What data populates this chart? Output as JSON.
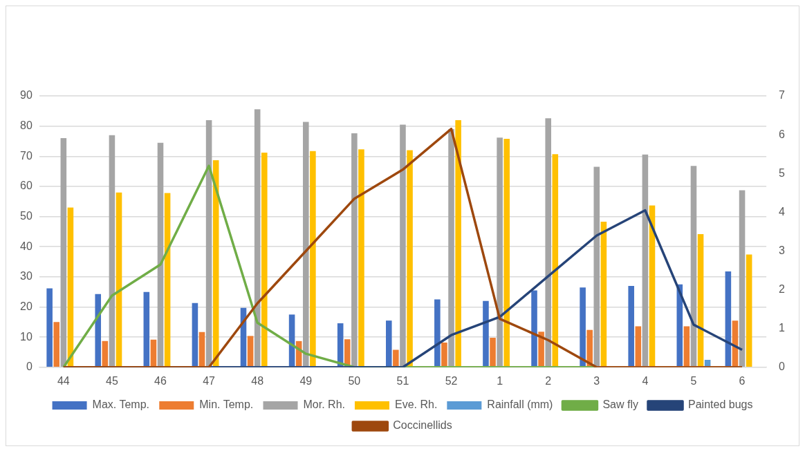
{
  "chart_data": {
    "type": "bar",
    "categories": [
      "44",
      "45",
      "46",
      "47",
      "48",
      "49",
      "50",
      "51",
      "52",
      "1",
      "2",
      "3",
      "4",
      "5",
      "6"
    ],
    "series": [
      {
        "name": "Max. Temp.",
        "color": "#4472c4",
        "values": [
          26.2,
          24.3,
          25,
          21.3,
          19.7,
          17.5,
          14.6,
          15.5,
          22.5,
          22,
          25.5,
          26.5,
          27,
          27.5,
          31.8
        ]
      },
      {
        "name": "Min. Temp.",
        "color": "#ed7d31",
        "values": [
          15,
          8.7,
          9.2,
          11.7,
          10.4,
          8.7,
          9.3,
          5.8,
          8.2,
          9.8,
          11.8,
          12.4,
          13.6,
          13.6,
          15.5
        ]
      },
      {
        "name": "Mor. Rh.",
        "color": "#a5a5a5",
        "values": [
          76,
          77,
          74.5,
          82,
          85.6,
          81.4,
          77.6,
          80.5,
          79,
          76.2,
          82.6,
          66.5,
          70.6,
          66.8,
          58.7
        ]
      },
      {
        "name": "Eve. Rh.",
        "color": "#ffc000",
        "values": [
          53,
          58,
          57.8,
          68.7,
          71.2,
          71.7,
          72.3,
          72,
          82,
          75.8,
          70.7,
          48.3,
          53.7,
          44.2,
          37.4
        ]
      },
      {
        "name": "Rainfall (mm)",
        "color": "#5b9bd5",
        "values": [
          0,
          0,
          0,
          0,
          0,
          0,
          0,
          0,
          0,
          0,
          0,
          0,
          0,
          2.5,
          0
        ]
      },
      {
        "name": "Saw fly",
        "type": "line",
        "axis": "y2",
        "color": "#70ad47",
        "values": [
          0,
          1.85,
          2.65,
          5.2,
          1.15,
          0.35,
          0,
          0,
          0,
          0,
          0,
          0,
          null,
          null,
          null
        ]
      },
      {
        "name": "Painted bugs",
        "type": "line",
        "axis": "y2",
        "color": "#264478",
        "values": [
          0,
          0,
          0,
          0,
          0,
          0,
          0,
          0,
          0.83,
          1.3,
          2.35,
          3.4,
          4.05,
          1.1,
          0.45
        ]
      },
      {
        "name": "Coccinellids",
        "type": "line",
        "axis": "y2",
        "color": "#9e480e",
        "values": [
          0,
          0,
          0,
          0,
          1.65,
          3,
          4.35,
          5.1,
          6.15,
          1.25,
          0.7,
          0,
          0,
          0,
          0
        ]
      }
    ],
    "ylim": [
      0,
      90
    ],
    "yticks": [
      0,
      10,
      20,
      30,
      40,
      50,
      60,
      70,
      80,
      90
    ],
    "y2lim": [
      0,
      7
    ],
    "y2ticks": [
      0,
      1,
      2,
      3,
      4,
      5,
      6,
      7
    ],
    "grid": "y",
    "legend": "bottom",
    "marker": "none"
  }
}
